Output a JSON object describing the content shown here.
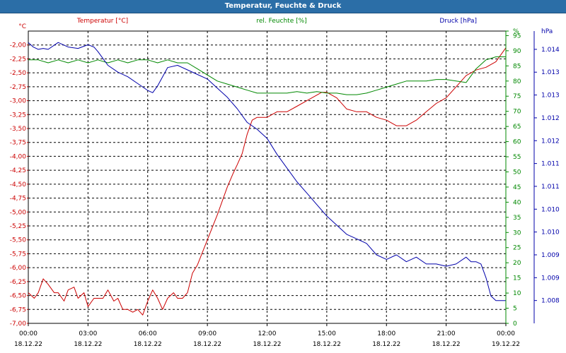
{
  "window": {
    "title": "Temperatur, Feuchte & Druck"
  },
  "chart_data": {
    "type": "line",
    "x_ticks": [
      {
        "time": "00:00",
        "date": "18.12.22"
      },
      {
        "time": "03:00",
        "date": "18.12.22"
      },
      {
        "time": "06:00",
        "date": "18.12.22"
      },
      {
        "time": "09:00",
        "date": "18.12.22"
      },
      {
        "time": "12:00",
        "date": "18.12.22"
      },
      {
        "time": "15:00",
        "date": "18.12.22"
      },
      {
        "time": "18:00",
        "date": "18.12.22"
      },
      {
        "time": "21:00",
        "date": "18.12.22"
      },
      {
        "time": "00:00",
        "date": "19.12.22"
      }
    ],
    "xlim_hours": [
      0,
      24
    ],
    "grid": true,
    "axes": {
      "temperature": {
        "unit": "°C",
        "legend": "Temperatur [°C]",
        "color": "#cc0000",
        "ylim": [
          -7.0,
          -1.75
        ],
        "ticks": [
          "-2,00",
          "-2,25",
          "-2,50",
          "-2,75",
          "-3,00",
          "-3,25",
          "-3,50",
          "-3,75",
          "-4,00",
          "-4,25",
          "-4,50",
          "-4,75",
          "-5,00",
          "-5,25",
          "-5,50",
          "-5,75",
          "-6,00",
          "-6,25",
          "-6,50",
          "-6,75",
          "-7,00"
        ],
        "tick_values": [
          -2.0,
          -2.25,
          -2.5,
          -2.75,
          -3.0,
          -3.25,
          -3.5,
          -3.75,
          -4.0,
          -4.25,
          -4.5,
          -4.75,
          -5.0,
          -5.25,
          -5.5,
          -5.75,
          -6.0,
          -6.25,
          -6.5,
          -6.75,
          -7.0
        ]
      },
      "humidity": {
        "unit": "%",
        "legend": "rel. Feuchte [%]",
        "color": "#008800",
        "ylim": [
          0,
          96.5
        ],
        "ticks": [
          "0",
          "5",
          "10",
          "15",
          "20",
          "25",
          "30",
          "35",
          "40",
          "45",
          "50",
          "55",
          "60",
          "65",
          "70",
          "75",
          "80",
          "85",
          "90",
          "95",
          "%"
        ],
        "tick_values": [
          0,
          5,
          10,
          15,
          20,
          25,
          30,
          35,
          40,
          45,
          50,
          55,
          60,
          65,
          70,
          75,
          80,
          85,
          90,
          95,
          96.5
        ]
      },
      "pressure": {
        "unit": "hPa",
        "legend": "Druck [hPa]",
        "color": "#0000aa",
        "ylim": [
          1008.0,
          1014.4
        ],
        "ticks": [
          "1.014",
          "1.013",
          "1.013",
          "1.012",
          "1.012",
          "1.011",
          "1.011",
          "1.010",
          "1.010",
          "1.009",
          "1.009",
          "1.008"
        ],
        "tick_values": [
          1014.0,
          1013.5,
          1013.0,
          1012.5,
          1012.0,
          1011.5,
          1011.0,
          1010.5,
          1010.0,
          1009.5,
          1009.0,
          1008.5
        ]
      }
    },
    "series": [
      {
        "name": "Temperatur [°C]",
        "axis": "temperature",
        "color": "#cc0000",
        "x": [
          0,
          0.3,
          0.5,
          0.75,
          1.0,
          1.3,
          1.5,
          1.8,
          2.0,
          2.3,
          2.5,
          2.8,
          3.0,
          3.3,
          3.5,
          3.75,
          4.0,
          4.3,
          4.5,
          4.75,
          5.0,
          5.25,
          5.5,
          5.75,
          6.0,
          6.25,
          6.5,
          6.75,
          7.0,
          7.3,
          7.5,
          7.75,
          8.0,
          8.25,
          8.5,
          9.0,
          9.5,
          10.0,
          10.3,
          10.5,
          10.75,
          11.0,
          11.25,
          11.5,
          12.0,
          12.5,
          13.0,
          13.5,
          14.0,
          14.5,
          14.75,
          15.0,
          15.25,
          15.5,
          16.0,
          16.5,
          17.0,
          17.5,
          18.0,
          18.5,
          19.0,
          19.5,
          20.0,
          20.5,
          21.0,
          21.5,
          22.0,
          22.5,
          23.0,
          23.5,
          24.0
        ],
        "values": [
          -6.45,
          -6.55,
          -6.45,
          -6.2,
          -6.3,
          -6.45,
          -6.45,
          -6.6,
          -6.4,
          -6.35,
          -6.55,
          -6.45,
          -6.7,
          -6.55,
          -6.55,
          -6.55,
          -6.4,
          -6.6,
          -6.55,
          -6.75,
          -6.75,
          -6.8,
          -6.75,
          -6.85,
          -6.6,
          -6.4,
          -6.55,
          -6.75,
          -6.55,
          -6.45,
          -6.55,
          -6.55,
          -6.45,
          -6.1,
          -5.95,
          -5.5,
          -5.05,
          -4.55,
          -4.3,
          -4.15,
          -3.95,
          -3.6,
          -3.35,
          -3.3,
          -3.3,
          -3.2,
          -3.2,
          -3.1,
          -3.0,
          -2.9,
          -2.85,
          -2.85,
          -2.9,
          -2.95,
          -3.15,
          -3.2,
          -3.2,
          -3.3,
          -3.35,
          -3.45,
          -3.45,
          -3.35,
          -3.2,
          -3.05,
          -2.95,
          -2.75,
          -2.55,
          -2.45,
          -2.4,
          -2.3,
          -2.05
        ]
      },
      {
        "name": "rel. Feuchte [%]",
        "axis": "humidity",
        "color": "#008800",
        "x": [
          0,
          0.5,
          1.0,
          1.5,
          2.0,
          2.5,
          3.0,
          3.5,
          4.0,
          4.5,
          5.0,
          5.5,
          6.0,
          6.5,
          7.0,
          7.5,
          8.0,
          8.5,
          9.0,
          9.5,
          10.0,
          10.5,
          11.0,
          11.5,
          12.0,
          12.5,
          13.0,
          13.5,
          14.0,
          14.5,
          15.0,
          15.5,
          16.0,
          16.5,
          17.0,
          17.5,
          18.0,
          18.5,
          19.0,
          19.5,
          20.0,
          20.5,
          21.0,
          21.5,
          22.0,
          22.5,
          23.0,
          23.5,
          24.0
        ],
        "values": [
          87,
          87,
          86,
          87,
          86,
          87,
          86,
          87,
          86,
          87,
          86,
          87,
          87,
          86,
          87,
          86,
          86,
          84,
          82,
          80,
          79,
          78,
          77,
          76,
          76,
          76,
          76,
          76.5,
          76,
          76.5,
          76,
          76,
          75.5,
          75.5,
          76,
          77,
          78,
          79,
          80,
          80,
          80,
          80.5,
          80.5,
          80,
          79.5,
          84,
          87,
          88,
          88
        ]
      },
      {
        "name": "Druck [hPa]",
        "axis": "pressure",
        "color": "#0000aa",
        "x": [
          0,
          0.25,
          0.5,
          0.75,
          1.0,
          1.5,
          2.0,
          2.5,
          3.0,
          3.3,
          3.5,
          3.75,
          4.0,
          4.5,
          5.0,
          5.5,
          6.0,
          6.25,
          6.5,
          7.0,
          7.5,
          8.0,
          8.5,
          9.0,
          9.5,
          10.0,
          10.5,
          11.0,
          11.5,
          12.0,
          12.5,
          13.0,
          13.5,
          14.0,
          14.5,
          15.0,
          15.5,
          16.0,
          16.5,
          17.0,
          17.5,
          18.0,
          18.5,
          19.0,
          19.5,
          20.0,
          20.5,
          21.0,
          21.5,
          22.0,
          22.25,
          22.5,
          22.75,
          23.0,
          23.25,
          23.5,
          24.0
        ],
        "values": [
          1014.15,
          1014.05,
          1014.0,
          1014.02,
          1014.0,
          1014.15,
          1014.05,
          1014.02,
          1014.1,
          1014.05,
          1013.95,
          1013.8,
          1013.65,
          1013.5,
          1013.4,
          1013.25,
          1013.1,
          1013.05,
          1013.2,
          1013.6,
          1013.65,
          1013.55,
          1013.45,
          1013.35,
          1013.15,
          1012.95,
          1012.7,
          1012.4,
          1012.25,
          1012.05,
          1011.7,
          1011.4,
          1011.1,
          1010.85,
          1010.6,
          1010.35,
          1010.15,
          1009.95,
          1009.85,
          1009.75,
          1009.5,
          1009.4,
          1009.5,
          1009.35,
          1009.45,
          1009.3,
          1009.3,
          1009.25,
          1009.3,
          1009.45,
          1009.35,
          1009.35,
          1009.3,
          1009.0,
          1008.6,
          1008.5,
          1008.5
        ]
      }
    ]
  }
}
